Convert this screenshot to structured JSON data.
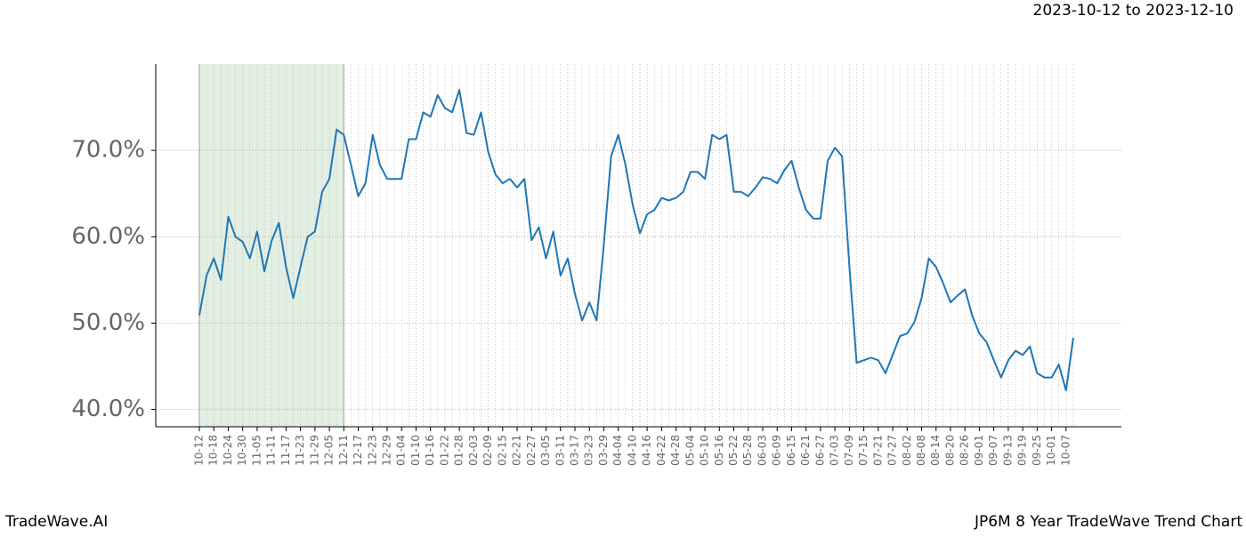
{
  "chart_data": {
    "type": "line",
    "subtitle": "2023-10-12 to 2023-12-10",
    "brand": "TradeWave.AI",
    "title": "JP6M 8 Year TradeWave Trend Chart",
    "categories": [
      "10-12",
      null,
      "10-18",
      null,
      "10-24",
      null,
      "10-30",
      null,
      "11-05",
      null,
      "11-11",
      null,
      "11-17",
      null,
      "11-23",
      null,
      "11-29",
      null,
      "12-05",
      null,
      "12-11",
      null,
      "12-17",
      null,
      "12-23",
      null,
      "12-29",
      null,
      "01-04",
      null,
      "01-10",
      null,
      "01-16",
      null,
      "01-22",
      null,
      "01-28",
      null,
      "02-03",
      null,
      "02-09",
      null,
      "02-15",
      null,
      "02-21",
      null,
      "02-27",
      null,
      "03-05",
      null,
      "03-11",
      null,
      "03-17",
      null,
      "03-23",
      null,
      "03-29",
      null,
      "04-04",
      null,
      "04-10",
      null,
      "04-16",
      null,
      "04-22",
      null,
      "04-28",
      null,
      "05-04",
      null,
      "05-10",
      null,
      "05-16",
      null,
      "05-22",
      null,
      "05-28",
      null,
      "06-03",
      null,
      "06-09",
      null,
      "06-15",
      null,
      "06-21",
      null,
      "06-27",
      null,
      "07-03",
      null,
      "07-09",
      null,
      "07-15",
      null,
      "07-21",
      null,
      "07-27",
      null,
      "08-02",
      null,
      "08-08",
      null,
      "08-14",
      null,
      "08-20",
      null,
      "08-26",
      null,
      "09-01",
      null,
      "09-07",
      null,
      "09-13",
      null,
      "09-19",
      null,
      "09-25",
      null,
      "10-01",
      null,
      "10-07",
      null
    ],
    "values": [
      50.9,
      55.5,
      57.5,
      55,
      62.3,
      60,
      59.4,
      57.5,
      60.6,
      56,
      59.5,
      61.6,
      56.5,
      52.9,
      56.5,
      60,
      60.6,
      65.2,
      66.7,
      72.4,
      71.8,
      68.3,
      64.7,
      66.2,
      71.8,
      68.3,
      66.7,
      66.7,
      66.7,
      71.3,
      71.3,
      74.4,
      73.9,
      76.4,
      74.9,
      74.4,
      77,
      72,
      71.8,
      74.4,
      69.8,
      67.2,
      66.2,
      66.7,
      65.7,
      66.7,
      59.6,
      61.1,
      57.5,
      60.6,
      55.5,
      57.5,
      53.4,
      50.3,
      52.4,
      50.3,
      59,
      69.3,
      71.8,
      68.3,
      63.7,
      60.4,
      62.6,
      63.1,
      64.5,
      64.2,
      64.5,
      65.2,
      67.5,
      67.5,
      66.7,
      71.8,
      71.3,
      71.8,
      65.2,
      65.2,
      64.7,
      65.7,
      66.9,
      66.7,
      66.2,
      67.7,
      68.8,
      65.7,
      63.1,
      62.1,
      62.1,
      68.8,
      70.3,
      69.3,
      56.5,
      45.4,
      45.7,
      46,
      45.7,
      44.2,
      46.3,
      48.5,
      48.8,
      50.1,
      52.9,
      57.5,
      56.5,
      54.6,
      52.4,
      53.2,
      53.9,
      50.9,
      48.8,
      47.8,
      45.7,
      43.7,
      45.7,
      46.8,
      46.3,
      47.3,
      44.2,
      43.7,
      43.7,
      45.2,
      42.2,
      48.3
    ],
    "color": "#1f77b4",
    "highlight_range": [
      0,
      20
    ],
    "highlight_color": "#e3efe3",
    "ylim": [
      38,
      80
    ],
    "yticks": [
      {
        "value": 40,
        "label": "40.0%"
      },
      {
        "value": 50,
        "label": "50.0%"
      },
      {
        "value": 60,
        "label": "60.0%"
      },
      {
        "value": 70,
        "label": "70.0%"
      }
    ],
    "grid": true
  }
}
